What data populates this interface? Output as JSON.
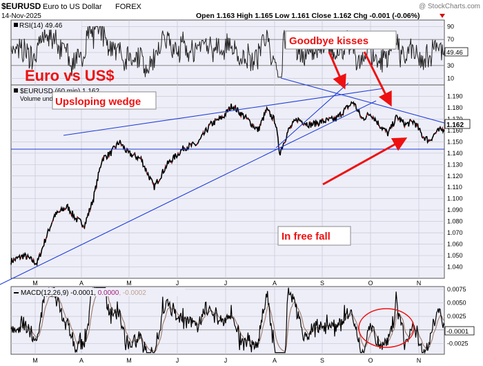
{
  "header": {
    "symbol": "$EURUSD",
    "name": "Euro to US Dollar",
    "exchange": "FOREX",
    "date": "14-Nov-2025",
    "watermark": "@ StockCharts.com",
    "ohlc": "Open 1.163  High 1.165  Low 1.161  Close 1.162  Chg -0.001 (-0.06%)"
  },
  "colors": {
    "panel_bg": "#eeeef8",
    "price_line": "#000000",
    "trend_line": "#1f3fd6",
    "annotation": "#ee1111",
    "macd_line": "#000000",
    "signal_line": "#a08070"
  },
  "chart_data": [
    {
      "type": "line",
      "panel": "rsi",
      "label": "RSI(14) 49.46",
      "last_value_tag": "49.46",
      "ylim": [
        0,
        100
      ],
      "y_ticks": [
        "90",
        "70",
        "50",
        "30",
        "10"
      ],
      "reference_lines": [
        70,
        30
      ]
    },
    {
      "type": "line",
      "panel": "price",
      "label": "$EURUSD (60 min) 1.162",
      "volume_label": "Volume undefined",
      "interval": "60 min",
      "ylim": [
        1.03,
        1.2
      ],
      "y_ticks": [
        "1.190",
        "1.180",
        "1.170",
        "1.160",
        "1.150",
        "1.140",
        "1.130",
        "1.120",
        "1.110",
        "1.100",
        "1.090",
        "1.080",
        "1.070",
        "1.060",
        "1.050",
        "1.040"
      ],
      "last_value_tag": "1.162",
      "support_level": 1.14,
      "x_months": [
        "M",
        "A",
        "M",
        "J",
        "J",
        "A",
        "S",
        "O",
        "N"
      ],
      "approx_path": [
        {
          "t": 0.0,
          "v": 1.045
        },
        {
          "t": 0.03,
          "v": 1.05
        },
        {
          "t": 0.06,
          "v": 1.043
        },
        {
          "t": 0.08,
          "v": 1.065
        },
        {
          "t": 0.1,
          "v": 1.085
        },
        {
          "t": 0.13,
          "v": 1.093
        },
        {
          "t": 0.15,
          "v": 1.082
        },
        {
          "t": 0.17,
          "v": 1.077
        },
        {
          "t": 0.19,
          "v": 1.1
        },
        {
          "t": 0.21,
          "v": 1.135
        },
        {
          "t": 0.23,
          "v": 1.14
        },
        {
          "t": 0.25,
          "v": 1.15
        },
        {
          "t": 0.27,
          "v": 1.14
        },
        {
          "t": 0.3,
          "v": 1.135
        },
        {
          "t": 0.33,
          "v": 1.11
        },
        {
          "t": 0.36,
          "v": 1.13
        },
        {
          "t": 0.4,
          "v": 1.145
        },
        {
          "t": 0.43,
          "v": 1.148
        },
        {
          "t": 0.46,
          "v": 1.165
        },
        {
          "t": 0.49,
          "v": 1.172
        },
        {
          "t": 0.51,
          "v": 1.182
        },
        {
          "t": 0.53,
          "v": 1.175
        },
        {
          "t": 0.55,
          "v": 1.168
        },
        {
          "t": 0.57,
          "v": 1.16
        },
        {
          "t": 0.59,
          "v": 1.178
        },
        {
          "t": 0.61,
          "v": 1.168
        },
        {
          "t": 0.62,
          "v": 1.14
        },
        {
          "t": 0.64,
          "v": 1.16
        },
        {
          "t": 0.66,
          "v": 1.17
        },
        {
          "t": 0.69,
          "v": 1.165
        },
        {
          "t": 0.72,
          "v": 1.168
        },
        {
          "t": 0.75,
          "v": 1.17
        },
        {
          "t": 0.77,
          "v": 1.178
        },
        {
          "t": 0.79,
          "v": 1.185
        },
        {
          "t": 0.81,
          "v": 1.17
        },
        {
          "t": 0.83,
          "v": 1.175
        },
        {
          "t": 0.85,
          "v": 1.165
        },
        {
          "t": 0.87,
          "v": 1.157
        },
        {
          "t": 0.89,
          "v": 1.172
        },
        {
          "t": 0.91,
          "v": 1.165
        },
        {
          "t": 0.93,
          "v": 1.168
        },
        {
          "t": 0.95,
          "v": 1.155
        },
        {
          "t": 0.965,
          "v": 1.151
        },
        {
          "t": 0.98,
          "v": 1.158
        },
        {
          "t": 1.0,
          "v": 1.162
        }
      ]
    },
    {
      "type": "line",
      "panel": "macd",
      "label": "MACD(12,26,9) -0.0001, 0.0000, -0.0002",
      "label_parts": [
        "MACD(12,26,9) -0.0001, ",
        "0.0000",
        ", -0.0002"
      ],
      "last_value_tag": "-0.0001",
      "ylim": [
        -0.0045,
        0.008
      ],
      "y_ticks": [
        "0.0075",
        "0.0050",
        "0.0025",
        "-0.0025"
      ]
    }
  ],
  "annotations": {
    "title": "Euro vs US$",
    "wedge": "Upsloping wedge",
    "kisses": "Goodbye kisses",
    "freefall": "In free fall"
  }
}
